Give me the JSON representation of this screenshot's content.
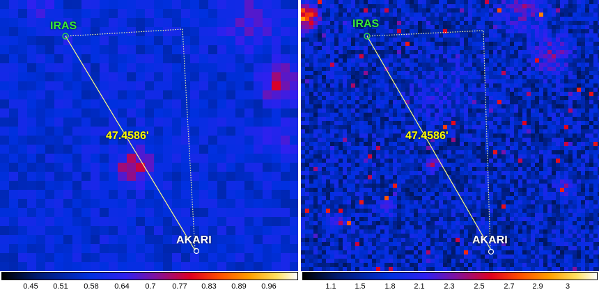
{
  "left_panel": {
    "labels": {
      "iras": "IRAS",
      "akari": "AKARI",
      "distance": "47.4586'"
    },
    "colorbar_ticks": [
      "0.45",
      "0.51",
      "0.58",
      "0.64",
      "0.7",
      "0.77",
      "0.83",
      "0.89",
      "0.96"
    ]
  },
  "right_panel": {
    "labels": {
      "iras": "IRAS",
      "akari": "AKARI",
      "distance": "47.4586'"
    },
    "colorbar_ticks": [
      "1.1",
      "1.5",
      "1.8",
      "2.1",
      "2.3",
      "2.5",
      "2.7",
      "2.9",
      "3"
    ]
  },
  "colors": {
    "background_blue": "#1a1ae0",
    "hot_red": "#e01020",
    "marker_line": "#ffff80",
    "iras_label": "#38e838",
    "distance_label": "#ffff00"
  }
}
